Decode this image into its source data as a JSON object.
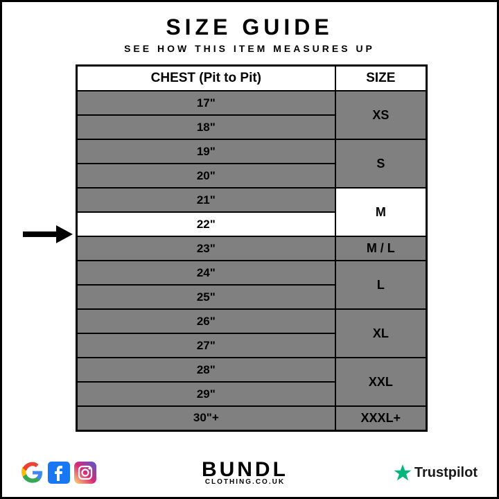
{
  "header": {
    "title": "SIZE GUIDE",
    "subtitle": "SEE HOW THIS ITEM MEASURES UP"
  },
  "table": {
    "columns": [
      "CHEST (Pit to Pit)",
      "SIZE"
    ],
    "highlight_size_index": 2,
    "highlight_chest_row": 5,
    "rows": [
      {
        "chest": "17\"",
        "size": "XS",
        "span": 2
      },
      {
        "chest": "18\""
      },
      {
        "chest": "19\"",
        "size": "S",
        "span": 2
      },
      {
        "chest": "20\""
      },
      {
        "chest": "21\"",
        "size": "M",
        "span": 2
      },
      {
        "chest": "22\""
      },
      {
        "chest": "23\"",
        "size": "M / L",
        "span": 1
      },
      {
        "chest": "24\"",
        "size": "L",
        "span": 2
      },
      {
        "chest": "25\""
      },
      {
        "chest": "26\"",
        "size": "XL",
        "span": 2
      },
      {
        "chest": "27\""
      },
      {
        "chest": "28\"",
        "size": "XXL",
        "span": 2
      },
      {
        "chest": "29\""
      },
      {
        "chest": "30\"+",
        "size": "XXXL+",
        "span": 1
      }
    ]
  },
  "colors": {
    "cell_bg": "#808080",
    "highlight_bg": "#ffffff",
    "border": "#000000",
    "text": "#000000",
    "trustpilot_green": "#00b67a",
    "google_blue": "#4285f4",
    "google_red": "#ea4335",
    "google_yellow": "#fbbc05",
    "google_green": "#34a853",
    "fb_blue": "#1877f2",
    "insta_grad1": "#feda75",
    "insta_grad2": "#d62976",
    "insta_grad3": "#4f5bd5"
  },
  "footer": {
    "brand_main": "BUNDL",
    "brand_sub": "CLOTHING.CO.UK",
    "trustpilot": "Trustpilot"
  }
}
